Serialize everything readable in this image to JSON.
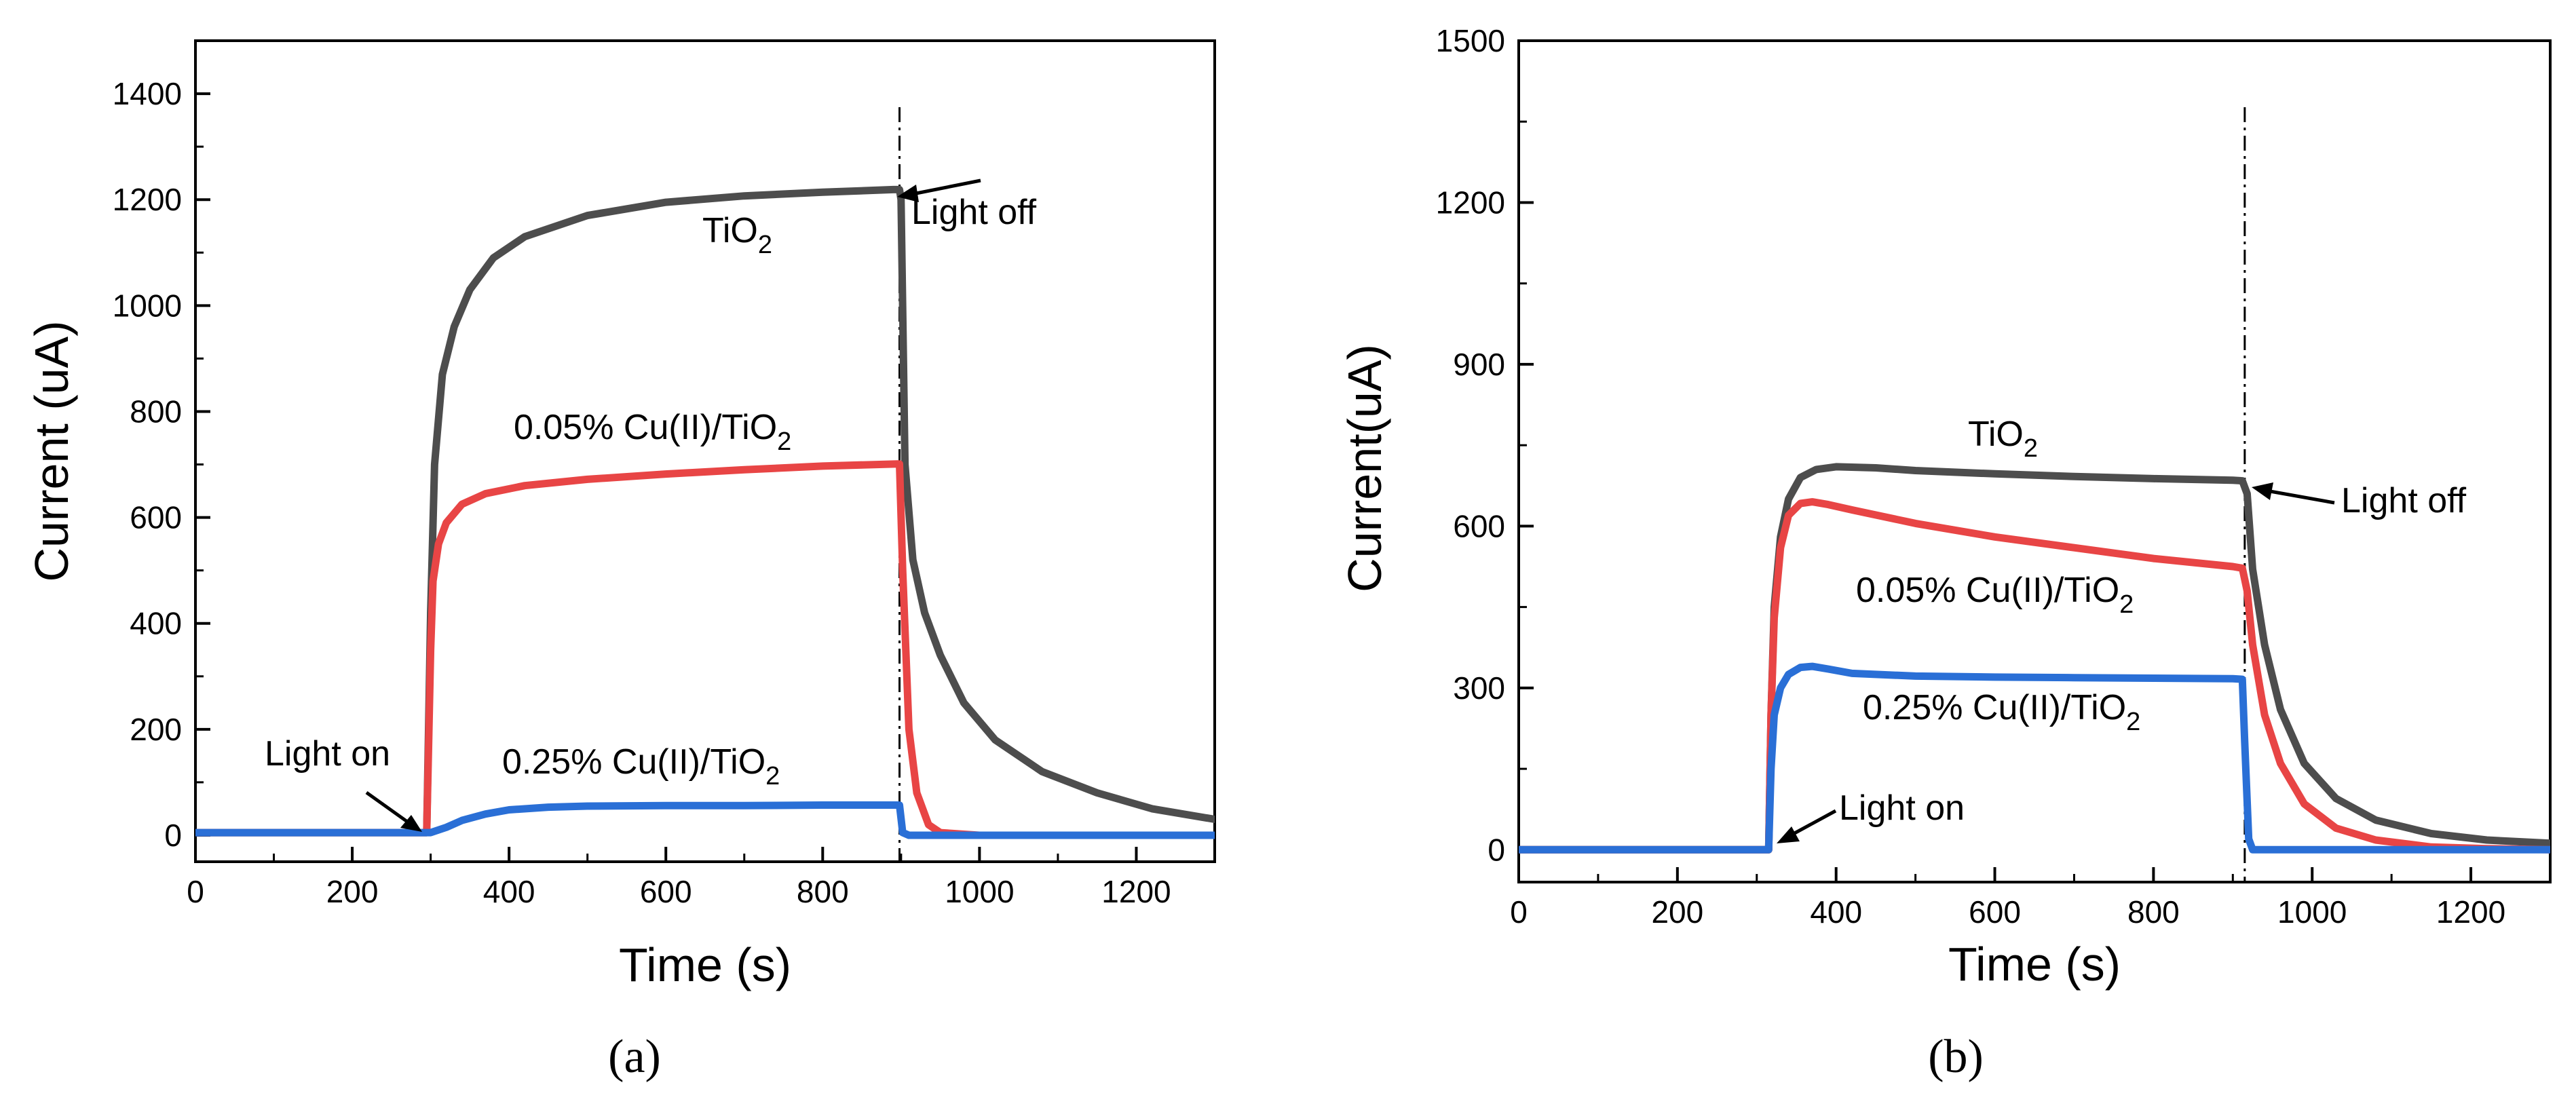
{
  "chart_data": [
    {
      "type": "line",
      "panel_label": "(a)",
      "xlabel": "Time (s)",
      "ylabel": "Current (uA)",
      "xlim": [
        0,
        1300
      ],
      "ylim": [
        -50,
        1500
      ],
      "xticks": [
        0,
        200,
        400,
        600,
        800,
        1000,
        1200
      ],
      "yticks": [
        0,
        200,
        400,
        600,
        800,
        1000,
        1200,
        1400
      ],
      "light_off_time": 898,
      "series": [
        {
          "name": "TiO2",
          "color": "#4d4d4d",
          "x": [
            0,
            295,
            300,
            305,
            315,
            330,
            350,
            380,
            420,
            500,
            600,
            700,
            800,
            890,
            898,
            900,
            905,
            915,
            930,
            950,
            980,
            1020,
            1080,
            1150,
            1220,
            1300
          ],
          "y": [
            5,
            5,
            420,
            700,
            870,
            960,
            1030,
            1090,
            1130,
            1170,
            1195,
            1207,
            1214,
            1219,
            1219,
            1200,
            700,
            520,
            420,
            340,
            250,
            180,
            120,
            80,
            50,
            30
          ]
        },
        {
          "name": "0.05% Cu(II)/TiO2",
          "color": "#e84545",
          "x": [
            0,
            295,
            300,
            303,
            310,
            320,
            340,
            370,
            420,
            500,
            600,
            700,
            800,
            895,
            898,
            902,
            910,
            920,
            935,
            950,
            1000,
            1300
          ],
          "y": [
            5,
            5,
            350,
            480,
            550,
            590,
            625,
            645,
            660,
            672,
            682,
            690,
            697,
            701,
            701,
            500,
            200,
            80,
            20,
            5,
            0,
            0
          ]
        },
        {
          "name": "0.25% Cu(II)/TiO2",
          "color": "#2a6fd6",
          "x": [
            0,
            300,
            320,
            340,
            370,
            400,
            450,
            500,
            600,
            700,
            800,
            895,
            898,
            902,
            910,
            1000,
            1300
          ],
          "y": [
            5,
            5,
            15,
            28,
            40,
            48,
            53,
            55,
            56,
            56,
            57,
            57,
            57,
            5,
            0,
            0,
            0
          ]
        }
      ],
      "annotations": {
        "tio2": {
          "pre": "TiO",
          "sub": "2"
        },
        "cu005": {
          "pre": "0.05% Cu(II)/TiO",
          "sub": "2"
        },
        "cu025": {
          "pre": "0.25% Cu(II)/TiO",
          "sub": "2"
        },
        "light_on": "Light on",
        "light_off": "Light off"
      }
    },
    {
      "type": "line",
      "panel_label": "(b)",
      "xlabel": "Time (s)",
      "ylabel": "Current(uA)",
      "xlim": [
        0,
        1300
      ],
      "ylim": [
        -60,
        1500
      ],
      "xticks": [
        0,
        200,
        400,
        600,
        800,
        1000,
        1200
      ],
      "yticks": [
        0,
        300,
        600,
        900,
        1200,
        1500
      ],
      "light_off_time": 915,
      "series": [
        {
          "name": "TiO2",
          "color": "#4d4d4d",
          "x": [
            0,
            315,
            318,
            322,
            330,
            340,
            355,
            375,
            400,
            450,
            500,
            600,
            700,
            800,
            900,
            912,
            918,
            925,
            940,
            960,
            990,
            1030,
            1080,
            1150,
            1220,
            1300
          ],
          "y": [
            0,
            0,
            250,
            450,
            580,
            650,
            690,
            705,
            710,
            708,
            703,
            697,
            692,
            688,
            685,
            684,
            660,
            520,
            380,
            260,
            160,
            95,
            55,
            30,
            18,
            12
          ]
        },
        {
          "name": "0.05% Cu(II)/TiO2",
          "color": "#e84545",
          "x": [
            0,
            315,
            318,
            322,
            330,
            340,
            355,
            370,
            390,
            420,
            500,
            600,
            700,
            800,
            900,
            912,
            918,
            925,
            940,
            960,
            990,
            1030,
            1080,
            1150,
            1220,
            1300
          ],
          "y": [
            0,
            0,
            250,
            430,
            560,
            620,
            642,
            645,
            640,
            630,
            605,
            580,
            560,
            540,
            525,
            522,
            480,
            380,
            250,
            160,
            85,
            40,
            18,
            5,
            2,
            0
          ]
        },
        {
          "name": "0.25% Cu(II)/TiO2",
          "color": "#2a6fd6",
          "x": [
            0,
            315,
            318,
            322,
            330,
            340,
            355,
            370,
            390,
            420,
            500,
            600,
            700,
            800,
            900,
            912,
            915,
            920,
            925,
            1300
          ],
          "y": [
            0,
            0,
            150,
            250,
            300,
            325,
            338,
            340,
            335,
            327,
            322,
            320,
            319,
            318,
            317,
            316,
            200,
            20,
            0,
            0
          ]
        }
      ],
      "annotations": {
        "tio2": {
          "pre": "TiO",
          "sub": "2"
        },
        "cu005": {
          "pre": "0.05% Cu(II)/TiO",
          "sub": "2"
        },
        "cu025": {
          "pre": "0.25% Cu(II)/TiO",
          "sub": "2"
        },
        "light_on": "Light on",
        "light_off": "Light off"
      }
    }
  ]
}
